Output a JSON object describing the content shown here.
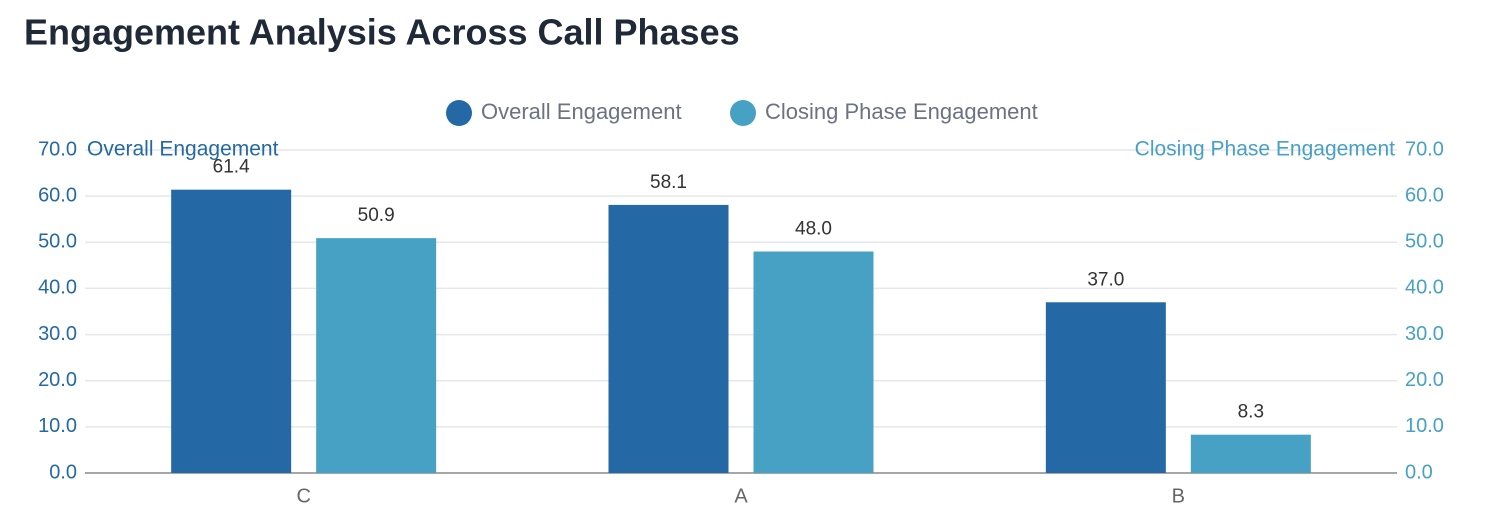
{
  "chart_data": {
    "type": "bar",
    "title": "Engagement Analysis Across Call Phases",
    "categories": [
      "C",
      "A",
      "B"
    ],
    "series": [
      {
        "name": "Overall Engagement",
        "color": "#2469a5",
        "values": [
          61.4,
          58.1,
          37.0
        ],
        "value_labels": [
          "61.4",
          "58.1",
          "37.0"
        ]
      },
      {
        "name": "Closing Phase Engagement",
        "color": "#47a1c4",
        "axis": "y2",
        "values": [
          50.9,
          48.0,
          8.3
        ],
        "value_labels": [
          "50.9",
          "48.0",
          "8.3"
        ]
      }
    ],
    "y_label": "Overall Engagement",
    "y2_label": "Closing Phase Engagement",
    "ylim": [
      0,
      70
    ],
    "yticks": [
      {
        "value": 0,
        "label": "0.0"
      },
      {
        "value": 10,
        "label": "10.0"
      },
      {
        "value": 20,
        "label": "20.0"
      },
      {
        "value": 30,
        "label": "30.0"
      },
      {
        "value": 40,
        "label": "40.0"
      },
      {
        "value": 50,
        "label": "50.0"
      },
      {
        "value": 60,
        "label": "60.0"
      },
      {
        "value": 70,
        "label": "70.0"
      }
    ],
    "y2lim": [
      0,
      70
    ],
    "y2ticks": [
      {
        "value": 0,
        "label": "0.0"
      },
      {
        "value": 10,
        "label": "10.0"
      },
      {
        "value": 20,
        "label": "20.0"
      },
      {
        "value": 30,
        "label": "30.0"
      },
      {
        "value": 40,
        "label": "40.0"
      },
      {
        "value": 50,
        "label": "50.0"
      },
      {
        "value": 60,
        "label": "60.0"
      },
      {
        "value": 70,
        "label": "70.0"
      }
    ],
    "grid": true,
    "legend": "top"
  }
}
